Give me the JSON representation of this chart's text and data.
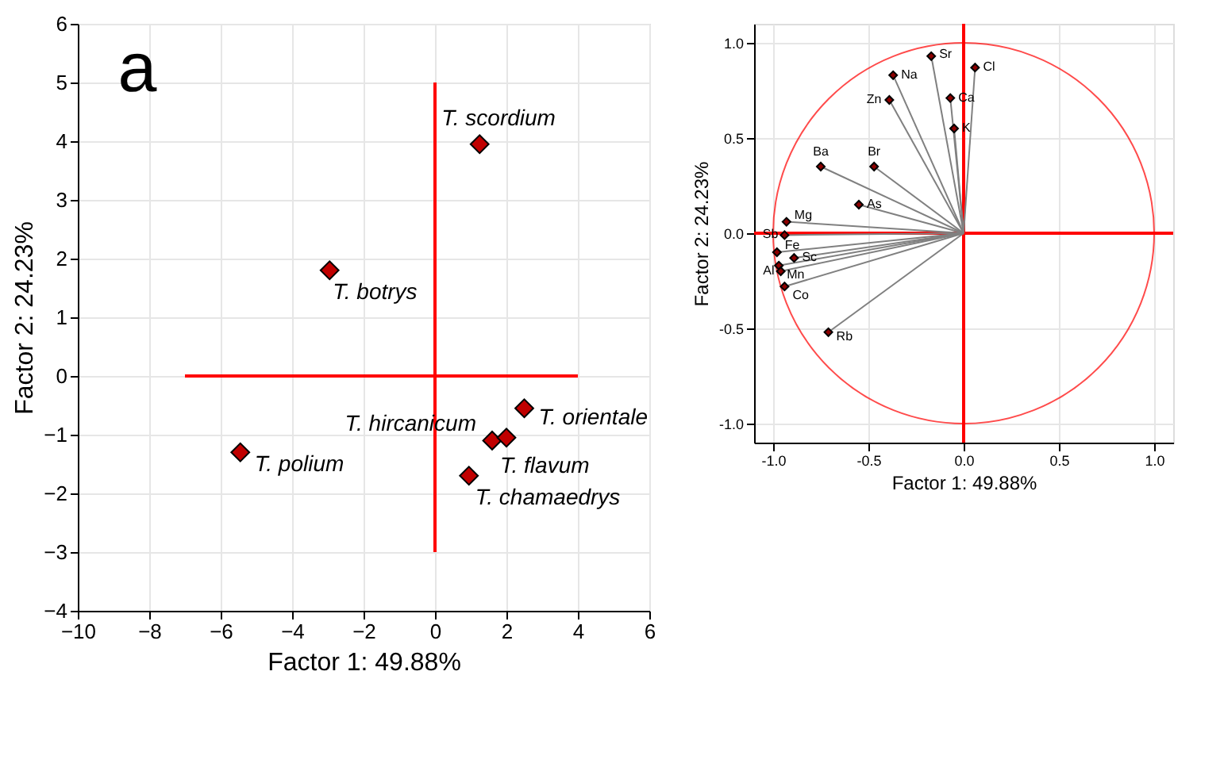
{
  "chart_data": [
    {
      "type": "scatter",
      "xlabel": "Factor 1: 49.88%",
      "ylabel": "Factor 2: 24.23%",
      "xlim": [
        -10,
        6
      ],
      "xticks": [
        -10,
        -8,
        -6,
        -4,
        -2,
        0,
        2,
        4,
        6
      ],
      "ylim": [
        -4,
        6
      ],
      "yticks": [
        -4,
        -3,
        -2,
        -1,
        0,
        1,
        2,
        3,
        4,
        5,
        6
      ],
      "grid": true,
      "marker": "diamond",
      "legend": false,
      "annotations": [
        "a"
      ],
      "series": [
        {
          "name": "T. scordium",
          "color": "#c00000",
          "x": [
            1.25
          ],
          "values": [
            3.95
          ]
        },
        {
          "name": "T. botrys",
          "color": "#c00000",
          "x": [
            -2.95
          ],
          "values": [
            1.8
          ]
        },
        {
          "name": "T. polium",
          "color": "#c00000",
          "x": [
            -5.45
          ],
          "values": [
            -1.3
          ]
        },
        {
          "name": "T. orientale",
          "color": "#c00000",
          "x": [
            2.5
          ],
          "values": [
            -0.55
          ]
        },
        {
          "name": "T. hircanicum",
          "color": "#c00000",
          "x": [
            1.6
          ],
          "values": [
            -1.1
          ]
        },
        {
          "name": "T. flavum",
          "color": "#c00000",
          "x": [
            2.0
          ],
          "values": [
            -1.05
          ]
        },
        {
          "name": "T. chamaedrys",
          "color": "#c00000",
          "x": [
            0.95
          ],
          "values": [
            -1.7
          ]
        },
        {
          "type": "line",
          "marker": "none",
          "color": "#ff0000",
          "x": [
            -7,
            4
          ],
          "values": [
            0,
            0
          ]
        },
        {
          "type": "line",
          "marker": "none",
          "color": "#ff0000",
          "x": [
            0,
            0
          ],
          "values": [
            -3,
            5
          ]
        }
      ]
    },
    {
      "type": "scatter",
      "xlabel": "Factor 1: 49.88%",
      "ylabel": "Factor 2: 24.23%",
      "xlim": [
        -1.1,
        1.1
      ],
      "xticks": [
        {
          "value": -1,
          "label": "-1.0"
        },
        -0.5,
        {
          "value": 0,
          "label": "0.0"
        },
        0.5,
        {
          "value": 1,
          "label": "1.0"
        }
      ],
      "ylim": [
        -1.1,
        1.1
      ],
      "yticks": [
        {
          "value": -1,
          "label": "-1.0"
        },
        -0.5,
        {
          "value": 0,
          "label": "0.0"
        },
        0.5,
        {
          "value": 1,
          "label": "1.0"
        }
      ],
      "grid": true,
      "marker": "diamond",
      "legend": false,
      "series": [
        {
          "type": "line",
          "marker": "none",
          "color": "#ff0000",
          "x": [
            -1.1,
            1.1
          ],
          "values": [
            0,
            0
          ]
        },
        {
          "type": "line",
          "marker": "none",
          "color": "#ff0000",
          "x": [
            0,
            0
          ],
          "values": [
            -1.1,
            1.1
          ]
        },
        {
          "name": "Cl",
          "color": "#8b0000",
          "x": [
            0.06
          ],
          "values": [
            0.87
          ]
        },
        {
          "name": "Sr",
          "color": "#8b0000",
          "x": [
            -0.17
          ],
          "values": [
            0.93
          ]
        },
        {
          "name": "Na",
          "color": "#8b0000",
          "x": [
            -0.37
          ],
          "values": [
            0.83
          ]
        },
        {
          "name": "Ca",
          "color": "#8b0000",
          "x": [
            -0.07
          ],
          "values": [
            0.71
          ]
        },
        {
          "name": "Zn",
          "color": "#8b0000",
          "x": [
            -0.39
          ],
          "values": [
            0.7
          ]
        },
        {
          "name": "K",
          "color": "#8b0000",
          "x": [
            -0.05
          ],
          "values": [
            0.55
          ]
        },
        {
          "name": "Ba",
          "color": "#8b0000",
          "x": [
            -0.75
          ],
          "values": [
            0.35
          ]
        },
        {
          "name": "Br",
          "color": "#8b0000",
          "x": [
            -0.47
          ],
          "values": [
            0.35
          ]
        },
        {
          "name": "As",
          "color": "#8b0000",
          "x": [
            -0.55
          ],
          "values": [
            0.15
          ]
        },
        {
          "name": "Mg",
          "color": "#8b0000",
          "x": [
            -0.93
          ],
          "values": [
            0.06
          ]
        },
        {
          "name": "Sb",
          "color": "#8b0000",
          "x": [
            -0.94
          ],
          "values": [
            -0.01
          ]
        },
        {
          "name": "Fe",
          "color": "#8b0000",
          "x": [
            -0.98
          ],
          "values": [
            -0.1
          ]
        },
        {
          "name": "Sc",
          "color": "#8b0000",
          "x": [
            -0.89
          ],
          "values": [
            -0.13
          ]
        },
        {
          "name": "Mn",
          "color": "#8b0000",
          "x": [
            -0.97
          ],
          "values": [
            -0.17
          ]
        },
        {
          "name": "Al",
          "color": "#8b0000",
          "x": [
            -0.96
          ],
          "values": [
            -0.2
          ]
        },
        {
          "name": "Co",
          "color": "#8b0000",
          "x": [
            -0.94
          ],
          "values": [
            -0.28
          ]
        },
        {
          "name": "Rb",
          "color": "#8b0000",
          "x": [
            -0.71
          ],
          "values": [
            -0.52
          ]
        }
      ]
    }
  ]
}
